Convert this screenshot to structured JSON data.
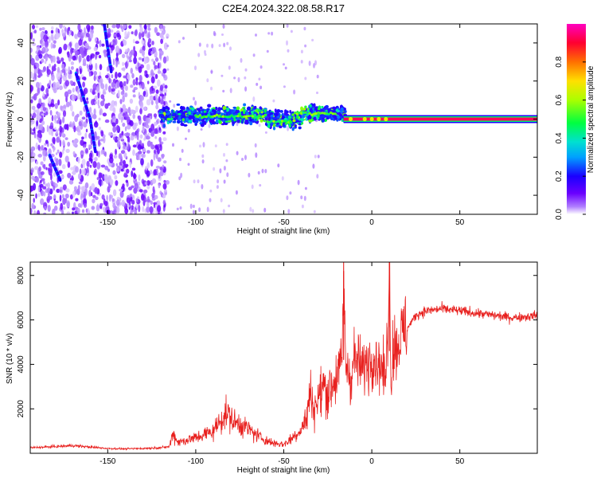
{
  "chart_data": [
    {
      "type": "heatmap",
      "title": "C2E4.2024.322.08.58.R17",
      "xlabel": "Height of straight line (km)",
      "ylabel": "Frequency (Hz)",
      "xlim": [
        -194,
        94
      ],
      "ylim": [
        -50,
        50
      ],
      "x_ticks": [
        -150,
        -100,
        -50,
        0,
        50
      ],
      "y_ticks": [
        -40,
        -20,
        0,
        20,
        40
      ],
      "colorbar": {
        "label": "Normalized spectral amplitude",
        "range": [
          0,
          1
        ],
        "ticks": [
          0.0,
          0.2,
          0.4,
          0.6,
          0.8
        ],
        "colors": [
          "#ffffff",
          "#7d00ff",
          "#0000ff",
          "#00c8ff",
          "#00ff60",
          "#aaff00",
          "#ffdd00",
          "#ff5000",
          "#ff0030",
          "#ff00c0"
        ]
      },
      "features": [
        {
          "name": "scatter noise",
          "x_range": [
            -194,
            -120
          ],
          "freq_range": [
            -50,
            50
          ],
          "amplitude": 0.05
        },
        {
          "name": "diagonal streak 1",
          "points": [
            [
              -183,
              -19
            ],
            [
              -177,
              -32
            ]
          ],
          "amplitude": 0.2
        },
        {
          "name": "diagonal streak 2",
          "points": [
            [
              -168,
              24
            ],
            [
              -160,
              0
            ],
            [
              -157,
              -17
            ]
          ],
          "amplitude": 0.2
        },
        {
          "name": "diagonal streak 3",
          "points": [
            [
              -152,
              50
            ],
            [
              -148,
              25
            ]
          ],
          "amplitude": 0.2
        },
        {
          "name": "broad band",
          "x_range": [
            -120,
            -25
          ],
          "freq_center": 2,
          "freq_width": 10,
          "amplitude": 0.3
        },
        {
          "name": "narrow carrier",
          "x_range": [
            -16,
            94
          ],
          "freq_center": 0,
          "amplitude": 0.95
        }
      ]
    },
    {
      "type": "line",
      "xlabel": "Height of straight line (km)",
      "ylabel": "SNR (10 * v/v)",
      "xlim": [
        -194,
        94
      ],
      "ylim": [
        0,
        8600
      ],
      "x_ticks": [
        -150,
        -100,
        -50,
        0,
        50
      ],
      "y_ticks": [
        2000,
        4000,
        6000,
        8000
      ],
      "color": "#e8201e",
      "series": [
        {
          "name": "SNR",
          "x": [
            -194,
            -180,
            -170,
            -160,
            -150,
            -140,
            -130,
            -120,
            -115,
            -113,
            -110,
            -100,
            -90,
            -85,
            -82,
            -78,
            -72,
            -65,
            -58,
            -50,
            -45,
            -40,
            -37,
            -35,
            -33,
            -30,
            -27,
            -25,
            -20,
            -17,
            -16,
            -15,
            -12,
            -10,
            -5,
            0,
            5,
            8,
            10,
            11,
            12,
            14,
            17,
            20,
            25,
            30,
            40,
            50,
            60,
            70,
            80,
            94
          ],
          "y": [
            250,
            300,
            350,
            280,
            220,
            200,
            220,
            250,
            300,
            900,
            500,
            700,
            1000,
            1600,
            1800,
            1400,
            1200,
            800,
            500,
            400,
            700,
            1100,
            1600,
            2800,
            2000,
            2500,
            3100,
            2700,
            3500,
            4000,
            8200,
            4200,
            3300,
            4300,
            3800,
            4400,
            4000,
            3300,
            8600,
            3000,
            4800,
            4800,
            5300,
            5600,
            6200,
            6400,
            6500,
            6400,
            6300,
            6200,
            6100,
            6200
          ]
        }
      ]
    }
  ]
}
